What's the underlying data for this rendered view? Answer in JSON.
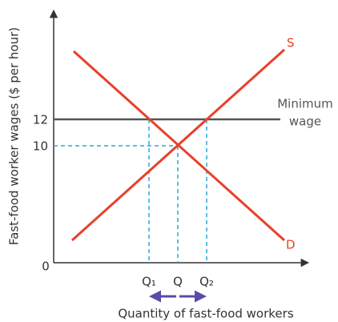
{
  "axes": {
    "y_label": "Fast-food worker wages ($ per hour)",
    "x_label": "Quantity of fast-food workers",
    "origin": "0",
    "y_ticks": [
      "10",
      "12"
    ]
  },
  "curves": {
    "supply": "S",
    "demand": "D"
  },
  "minimum_wage": {
    "lines": [
      "Minimum",
      "wage"
    ]
  },
  "quantities": [
    "Q₁",
    "Q",
    "Q₂"
  ]
}
